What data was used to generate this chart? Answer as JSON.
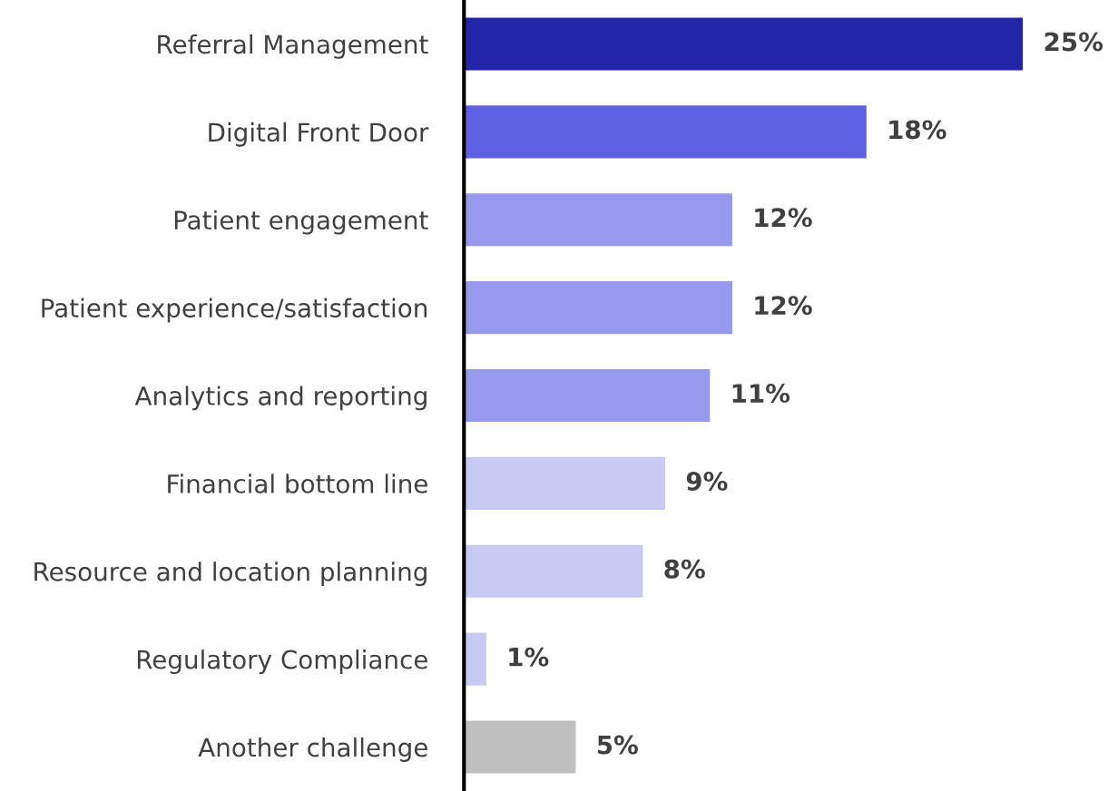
{
  "chart_data": {
    "type": "bar",
    "orientation": "horizontal",
    "categories": [
      "Referral Management",
      "Digital Front Door",
      "Patient engagement",
      "Patient experience/satisfaction",
      "Analytics and reporting",
      "Financial bottom line",
      "Resource and location planning",
      "Regulatory Compliance",
      "Another challenge"
    ],
    "values": [
      25,
      18,
      12,
      12,
      11,
      9,
      8,
      1,
      5
    ],
    "value_labels": [
      "25%",
      "18%",
      "12%",
      "12%",
      "11%",
      "9%",
      "8%",
      "1%",
      "5%"
    ],
    "colors": [
      "#2125a8",
      "#5e62e0",
      "#9799ec",
      "#9799ec",
      "#9799ec",
      "#c9caf4",
      "#c9caf4",
      "#c9caf4",
      "#bfbfbf"
    ]
  }
}
